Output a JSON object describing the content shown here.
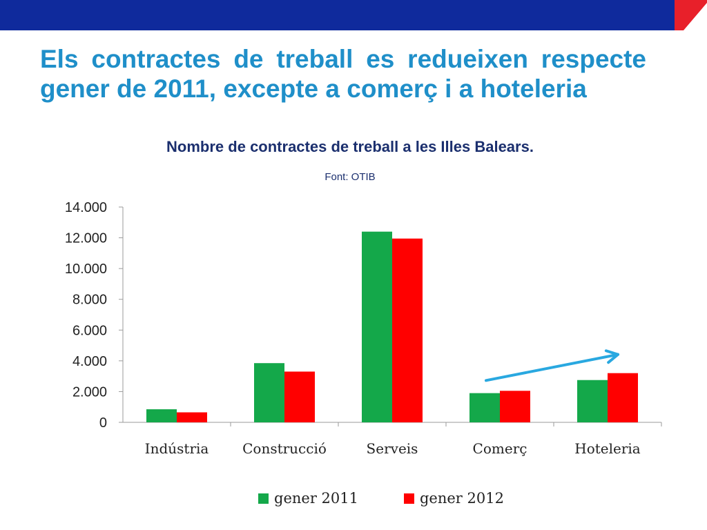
{
  "slide": {
    "title": "Els contractes de treball es redueixen respecte gener de 2011, excepte a comerç i a hoteleria"
  },
  "colors": {
    "header_blue": "#0f2a9c",
    "header_red": "#e8202a",
    "title_blue": "#1f8fc9",
    "subtitle_navy": "#1b2f6e",
    "arrow_blue": "#29a8e0"
  },
  "chart_data": {
    "type": "bar",
    "title": "Nombre de contractes de treball a les Illes Balears.",
    "source": "Font: OTIB",
    "categories": [
      "Indústria",
      "Construcció",
      "Serveis",
      "Comerç",
      "Hoteleria"
    ],
    "series": [
      {
        "name": "gener 2011",
        "color": "#14a84a",
        "values": [
          850,
          3850,
          12400,
          1900,
          2750
        ]
      },
      {
        "name": "gener 2012",
        "color": "#ff0000",
        "values": [
          650,
          3300,
          11950,
          2050,
          3200
        ]
      }
    ],
    "yticks": [
      "0",
      "2.000",
      "4.000",
      "6.000",
      "8.000",
      "10.000",
      "12.000",
      "14.000"
    ],
    "ylim": [
      0,
      14000
    ],
    "grid": false,
    "legend": "bottom",
    "annotation": {
      "type": "arrow",
      "from_category": "Comerç",
      "to_category": "Hoteleria",
      "direction": "up"
    }
  }
}
